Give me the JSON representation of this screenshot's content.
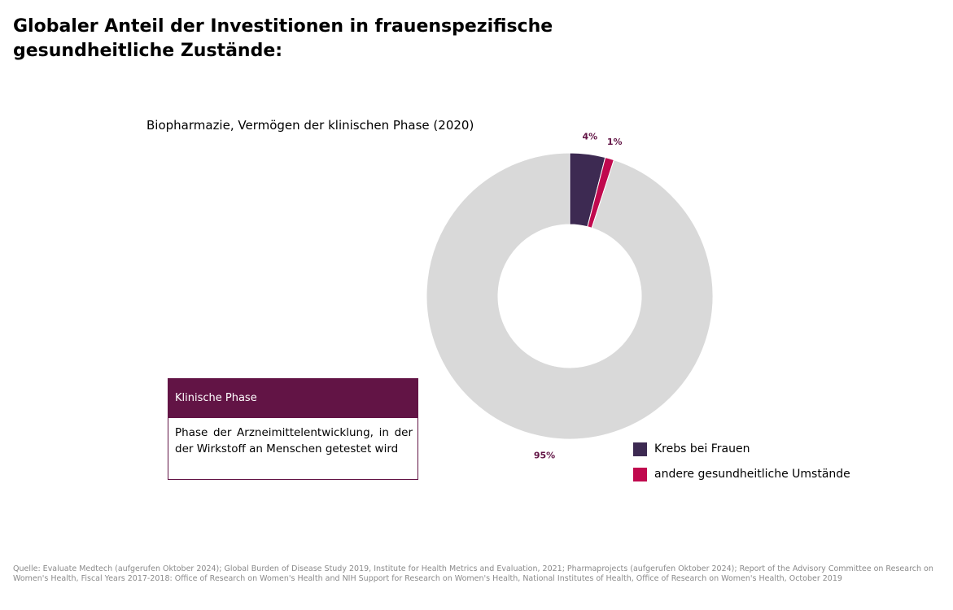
{
  "page": {
    "title": "Globaler Anteil der Investitionen in frauenspezifische gesundheitliche Zustände:",
    "source": "Quelle: Evaluate Medtech (aufgerufen Oktober 2024); Global Burden of Disease Study 2019, Institute for Health Metrics and Evaluation, 2021; Pharmaprojects (aufgerufen Oktober 2024); Report of the Advisory Committee on Research on Women's Health, Fiscal Years 2017-2018: Office of Research on Women's Health and NIH Support for Research on Women's Health, National Institutes of Health, Office of Research on Women's Health, October 2019"
  },
  "info_box": {
    "heading": "Klinische Phase",
    "text": "Phase der Arzneimittelentwicklung, in der der Wirkstoff an Menschen getestet wird"
  },
  "chart_data": {
    "type": "pie",
    "subtitle": "Biopharmazie, Vermögen der klinischen Phase (2020)",
    "slices": [
      {
        "label": "Krebs bei Frauen",
        "value": 4,
        "display": "4%",
        "color": "#3d2a52",
        "in_legend": true
      },
      {
        "label": "andere gesundheitliche Umstände",
        "value": 1,
        "display": "1%",
        "color": "#c0094e",
        "in_legend": true
      },
      {
        "label": "",
        "value": 95,
        "display": "95%",
        "color": "#d9d9d9",
        "in_legend": false
      }
    ],
    "label_color": "#621445",
    "donut": true,
    "legend_position": "bottom-right"
  },
  "legend": {
    "items": [
      {
        "label": "Krebs bei Frauen",
        "color": "#3d2a52"
      },
      {
        "label": "andere gesundheitliche Umstände",
        "color": "#c0094e"
      }
    ]
  },
  "colors": {
    "accent": "#621445"
  }
}
